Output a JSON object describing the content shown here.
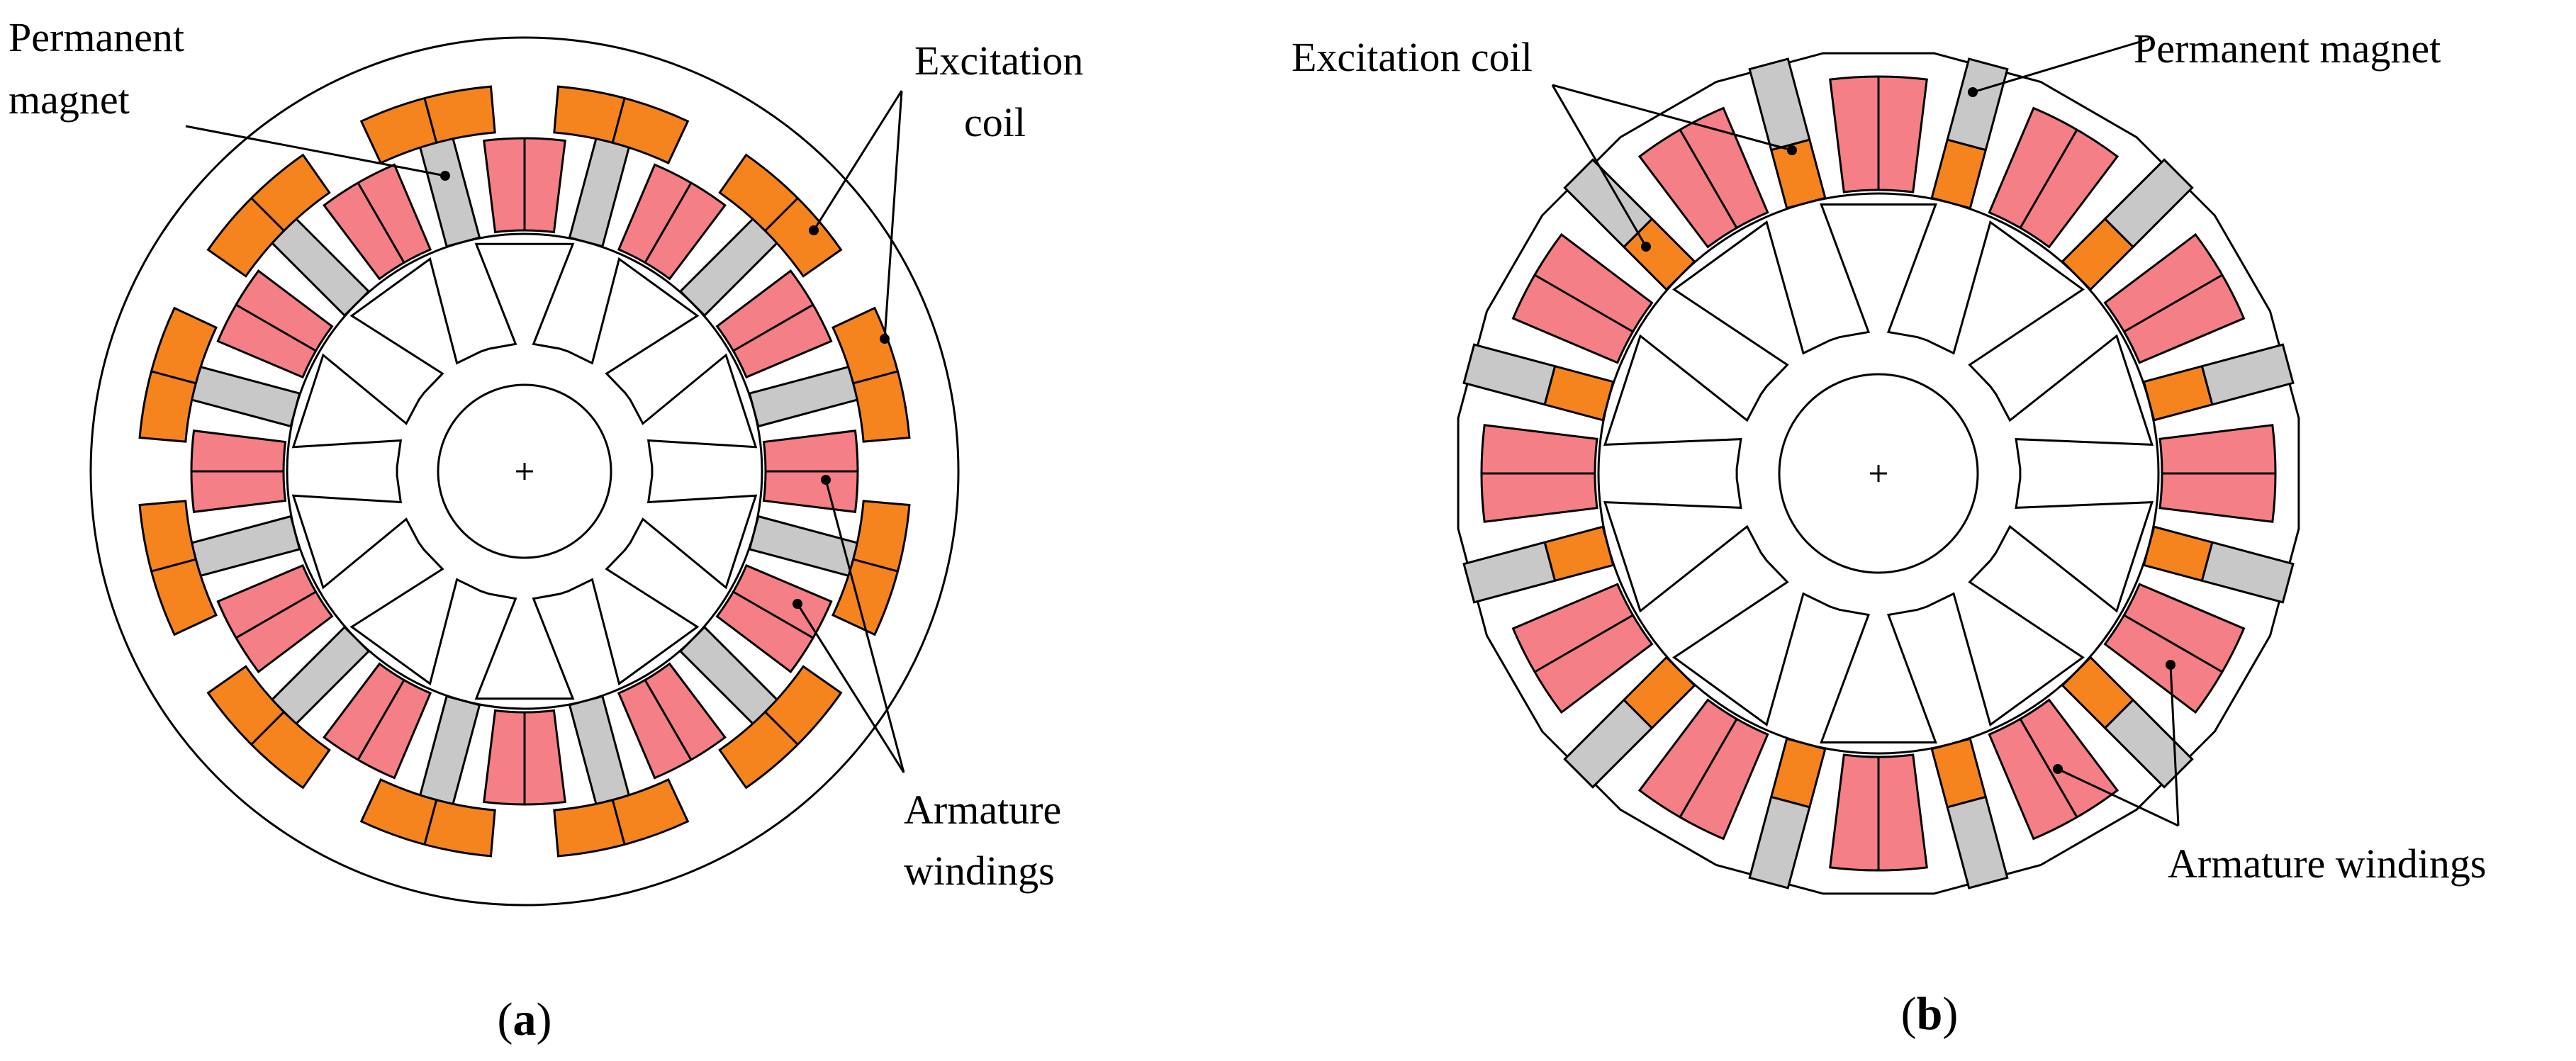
{
  "colors": {
    "excitation_coil": "#F5841F",
    "permanent_magnet": "#C8C8C8",
    "armature_windings": "#F47F87",
    "outline": "#000000",
    "background": "#FFFFFF"
  },
  "figure_a": {
    "labels": {
      "permanent_magnet_line1": "Permanent",
      "permanent_magnet_line2": "magnet",
      "excitation_coil_line1": "Excitation",
      "excitation_coil_line2": "coil",
      "armature_windings_line1": "Armature",
      "armature_windings_line2": "windings"
    },
    "caption": {
      "open": "(",
      "letter": "a",
      "close": ")"
    }
  },
  "figure_b": {
    "labels": {
      "excitation_coil": "Excitation coil",
      "permanent_magnet": "Permanent magnet",
      "armature_windings": "Armature windings"
    },
    "caption": {
      "open": "(",
      "letter": "b",
      "close": ")"
    }
  }
}
